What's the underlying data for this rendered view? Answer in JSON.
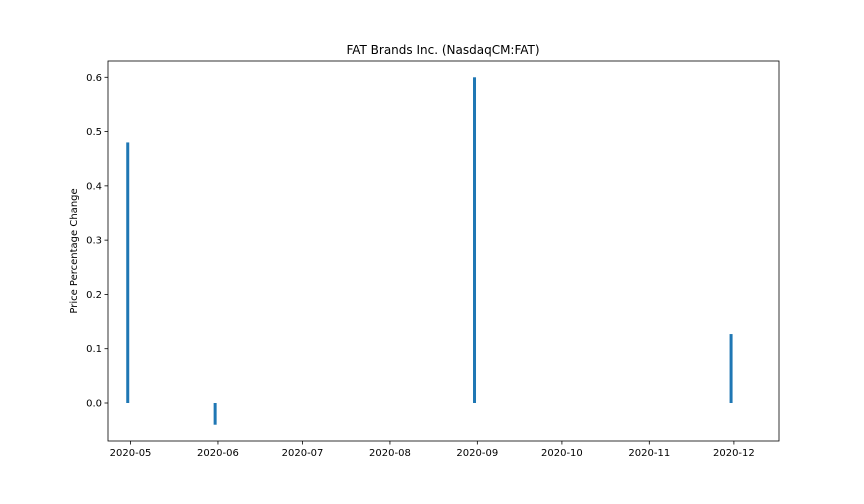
{
  "chart_data": {
    "type": "bar",
    "title": "FAT Brands Inc. (NasdaqCM:FAT)",
    "xlabel": "",
    "ylabel": "Price Percentage Change",
    "x_type": "date",
    "xlim": [
      "2020-04-23",
      "2020-12-17"
    ],
    "ylim": [
      -0.07,
      0.63
    ],
    "grid": false,
    "legend": "none",
    "bar_color": "#1f77b4",
    "x_ticks": [
      "2020-05-01",
      "2020-06-01",
      "2020-07-01",
      "2020-08-01",
      "2020-09-01",
      "2020-10-01",
      "2020-11-01",
      "2020-12-01"
    ],
    "x_tick_labels": [
      "2020-05",
      "2020-06",
      "2020-07",
      "2020-08",
      "2020-09",
      "2020-10",
      "2020-11",
      "2020-12"
    ],
    "y_ticks": [
      0.0,
      0.1,
      0.2,
      0.3,
      0.4,
      0.5,
      0.6
    ],
    "y_tick_labels": [
      "0.0",
      "0.1",
      "0.2",
      "0.3",
      "0.4",
      "0.5",
      "0.6"
    ],
    "points": [
      {
        "x": "2020-04-30",
        "y": 0.48
      },
      {
        "x": "2020-05-31",
        "y": -0.04
      },
      {
        "x": "2020-08-31",
        "y": 0.6
      },
      {
        "x": "2020-11-30",
        "y": 0.127
      }
    ]
  }
}
